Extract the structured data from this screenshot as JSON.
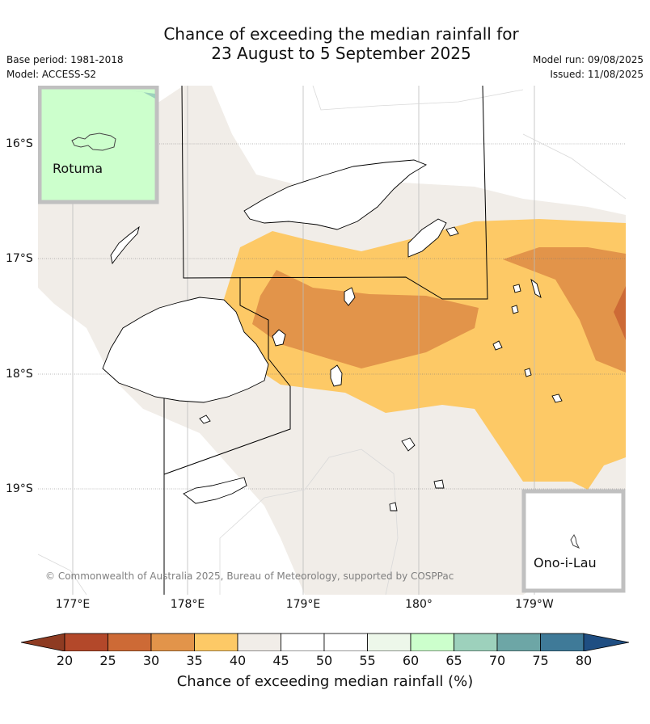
{
  "title": {
    "line1": "Chance of exceeding the median rainfall for",
    "line2": "23 August to 5 September 2025"
  },
  "info": {
    "base_period": "Base period: 1981-2018",
    "model": "Model: ACCESS-S2",
    "model_run": "Model run: 09/08/2025",
    "issued": "Issued: 11/08/2025"
  },
  "axes": {
    "longitude_labels": [
      "177°E",
      "178°E",
      "179°E",
      "180°",
      "179°W"
    ],
    "latitude_labels": [
      "16°S",
      "17°S",
      "18°S",
      "19°S"
    ]
  },
  "insets": {
    "top_left": "Rotuma",
    "bottom_right": "Ono-i-Lau"
  },
  "credit": "© Commonwealth of Australia 2025, Bureau of Meteorology, supported by COSPPac",
  "colorbar": {
    "label": "Chance of exceeding median rainfall (%)",
    "ticks": [
      "20",
      "25",
      "30",
      "35",
      "40",
      "45",
      "50",
      "55",
      "60",
      "65",
      "70",
      "75",
      "80"
    ],
    "colors": [
      "#b3482a",
      "#cd6a36",
      "#e2944a",
      "#fdc966",
      "#f1ede8",
      "#ffffff",
      "#ffffff",
      "#edf7ea",
      "#ccffcc",
      "#9dd1bc",
      "#6da6a6",
      "#3f7a98"
    ],
    "under_color": "#8e3b22",
    "over_color": "#1f4e82"
  }
}
